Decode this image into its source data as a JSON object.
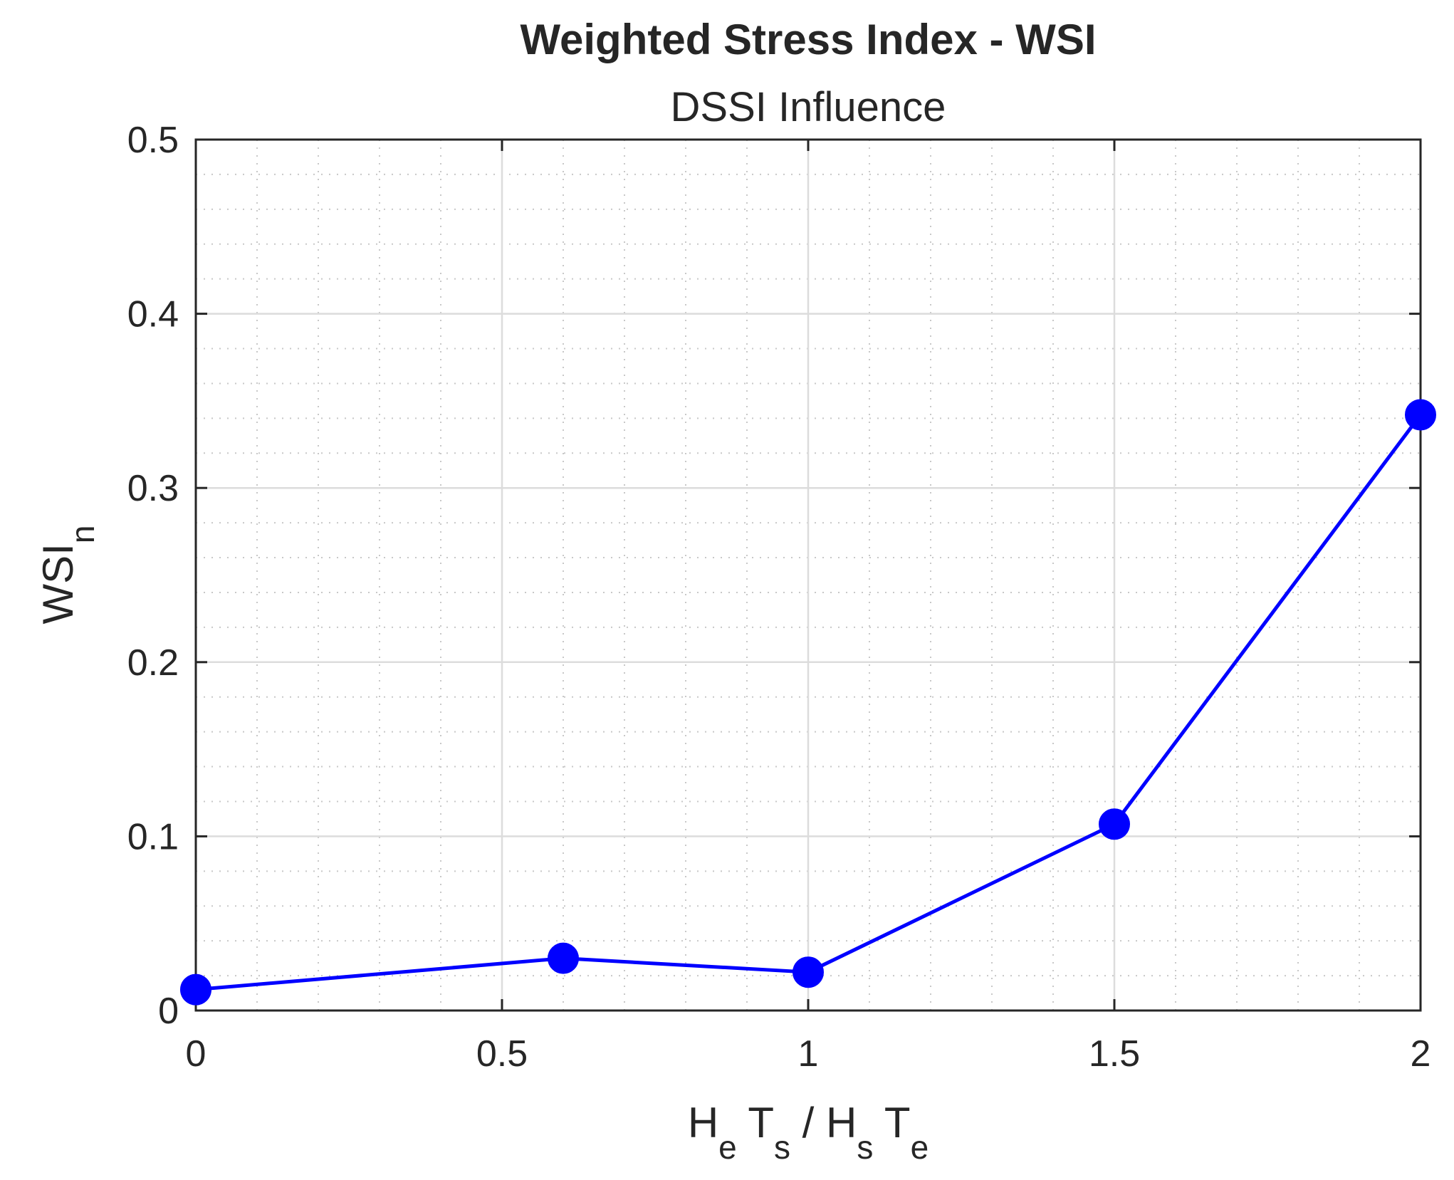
{
  "chart_data": {
    "type": "line",
    "title": "Weighted Stress Index - WSI",
    "subtitle": "DSSI Influence",
    "xlabel": {
      "parts": [
        {
          "text": "H",
          "sub": "e"
        },
        {
          "text": " T",
          "sub": "s"
        },
        {
          "text": " / H",
          "sub": "s"
        },
        {
          "text": " T",
          "sub": "e"
        }
      ]
    },
    "ylabel": {
      "text": "WSI",
      "sub": "n"
    },
    "xlim": [
      0,
      2
    ],
    "ylim": [
      0,
      0.5
    ],
    "xticks": [
      0,
      0.5,
      1,
      1.5,
      2
    ],
    "xtick_labels": [
      "0",
      "0.5",
      "1",
      "1.5",
      "2"
    ],
    "yticks": [
      0,
      0.1,
      0.2,
      0.3,
      0.4,
      0.5
    ],
    "ytick_labels": [
      "0",
      "0.1",
      "0.2",
      "0.3",
      "0.4",
      "0.5"
    ],
    "grid": true,
    "minor_grid": true,
    "box": true,
    "series": [
      {
        "color": "#0000ff",
        "marker": "circle",
        "x": [
          0,
          0.6,
          1,
          1.5,
          2
        ],
        "y": [
          0.012,
          0.03,
          0.022,
          0.107,
          0.342
        ]
      }
    ]
  }
}
